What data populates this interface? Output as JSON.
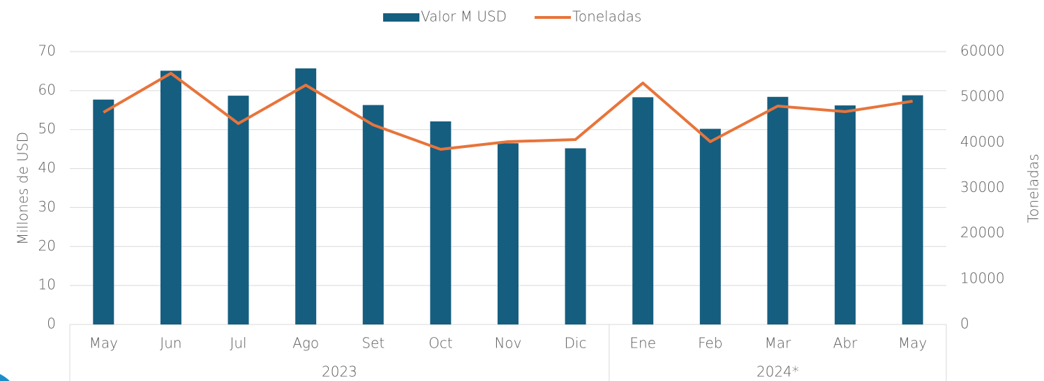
{
  "chart_data": {
    "type": "bar_line",
    "categories": [
      "May",
      "Jun",
      "Jul",
      "Ago",
      "Set",
      "Oct",
      "Nov",
      "Dic",
      "Ene",
      "Feb",
      "Mar",
      "Abr",
      "May"
    ],
    "group_labels": [
      "2023",
      "2024*"
    ],
    "group_sizes": [
      8,
      5
    ],
    "series": [
      {
        "name": "Valor M USD",
        "type": "bar",
        "color": "#165e80",
        "values": [
          57.7,
          65.1,
          58.7,
          65.7,
          56.3,
          52.1,
          46.5,
          45.2,
          58.3,
          50.2,
          58.4,
          56.2,
          58.8
        ]
      },
      {
        "name": "Toneladas",
        "type": "line",
        "axis": "y2",
        "color": "#e8743b",
        "values": [
          46650,
          55240,
          44190,
          52630,
          43890,
          38520,
          40200,
          40670,
          53100,
          40200,
          48030,
          46800,
          49100
        ]
      }
    ],
    "y_label": "Millones de USD",
    "y2_label": "Toneladas",
    "ylim": [
      0,
      70
    ],
    "yticks": [
      0,
      10,
      20,
      30,
      40,
      50,
      60,
      70
    ],
    "y2lim": [
      0,
      60000
    ],
    "y2ticks": [
      0,
      10000,
      20000,
      30000,
      40000,
      50000,
      60000
    ],
    "grid": true,
    "legend": "top"
  }
}
